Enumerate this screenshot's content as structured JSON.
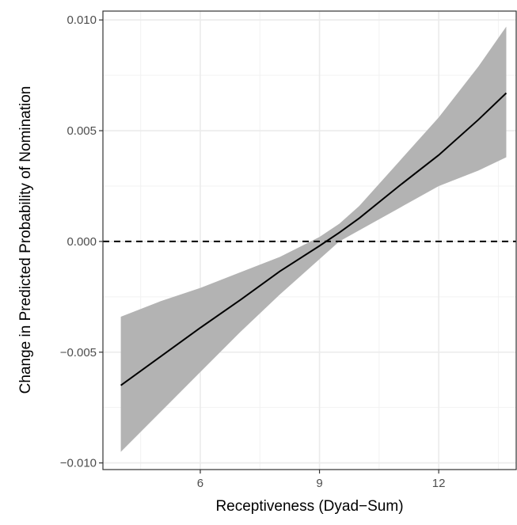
{
  "chart_data": {
    "type": "line",
    "title": "",
    "xlabel": "Receptiveness (Dyad−Sum)",
    "ylabel": "Change in Predicted Probability of Nomination",
    "xlim": [
      3.55,
      13.95
    ],
    "ylim": [
      -0.0103,
      0.0104
    ],
    "x_ticks": [
      6,
      9,
      12
    ],
    "x_tick_labels": [
      "6",
      "9",
      "12"
    ],
    "y_ticks": [
      -0.01,
      -0.005,
      0.0,
      0.005,
      0.01
    ],
    "y_tick_labels": [
      "−0.010",
      "−0.005",
      "0.000",
      "0.005",
      "0.010"
    ],
    "grid": true,
    "reference_line": {
      "y": 0.0,
      "style": "dashed"
    },
    "series": [
      {
        "x": [
          4.0,
          5.0,
          6.0,
          7.0,
          8.0,
          9.0,
          9.5,
          10.0,
          11.0,
          12.0,
          13.0,
          13.7
        ],
        "y": [
          -0.0065,
          -0.0052,
          -0.0039,
          -0.00265,
          -0.00135,
          -0.0002,
          0.0004,
          0.00105,
          0.0025,
          0.0039,
          0.0055,
          0.0067
        ],
        "lower": [
          -0.0095,
          -0.0077,
          -0.0059,
          -0.0041,
          -0.0024,
          -0.0008,
          0.0,
          0.0005,
          0.0015,
          0.0025,
          0.0032,
          0.0038
        ],
        "upper": [
          -0.0034,
          -0.0027,
          -0.0021,
          -0.0014,
          -0.0007,
          0.0002,
          0.0008,
          0.0016,
          0.0036,
          0.0056,
          0.0079,
          0.0097
        ],
        "line_color": "#000000",
        "band_color": "#b3b3b3"
      }
    ]
  }
}
